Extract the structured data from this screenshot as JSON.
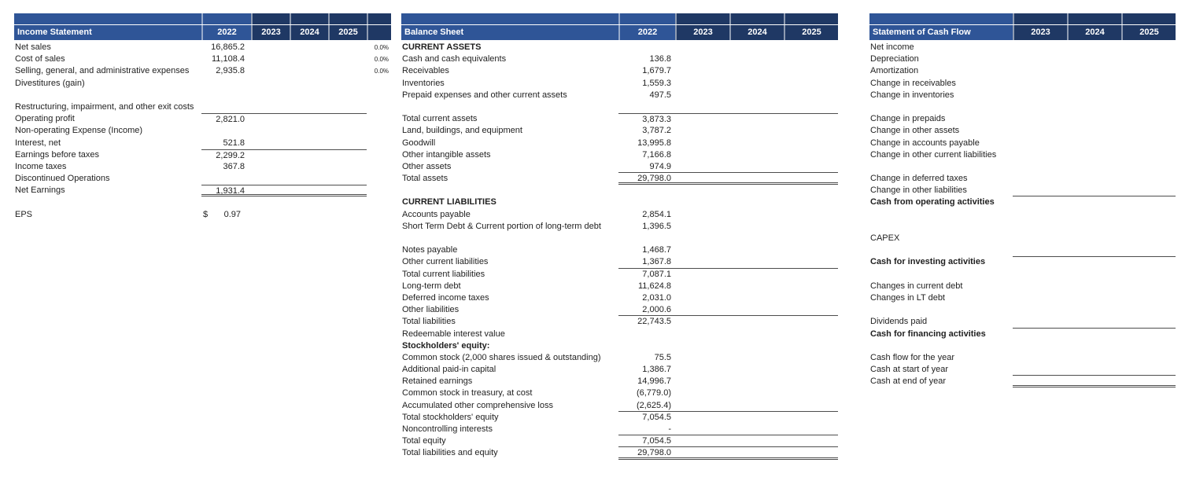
{
  "colors": {
    "header_blue": "#2F5597",
    "header_navy": "#1F3864",
    "border_gray": "#4d4d4d",
    "text": "#1f1f1f"
  },
  "statements": [
    {
      "id": "income-statement",
      "title": "Income Statement",
      "years": [
        "2022",
        "2023",
        "2024",
        "2025"
      ],
      "first_year_highlighted": true,
      "has_pct_column": true,
      "rows": [
        {
          "label": "Net sales",
          "values": [
            "16,865.2",
            "",
            "",
            ""
          ],
          "pct": "0.0%"
        },
        {
          "label": "Cost of sales",
          "values": [
            "11,108.4",
            "",
            "",
            ""
          ],
          "pct": "0.0%"
        },
        {
          "label": "Selling, general, and administrative expenses",
          "values": [
            "2,935.8",
            "",
            "",
            ""
          ],
          "pct": "0.0%"
        },
        {
          "label": "Divestitures (gain)",
          "values": [
            "",
            "",
            "",
            ""
          ]
        },
        {
          "label": "",
          "values": [
            "",
            "",
            "",
            ""
          ]
        },
        {
          "label": "Restructuring, impairment, and other exit costs",
          "values": [
            "",
            "",
            "",
            ""
          ]
        },
        {
          "label": "Operating profit",
          "values": [
            "2,821.0",
            "",
            "",
            ""
          ],
          "border_top": true
        },
        {
          "label": "Non-operating Expense (Income)",
          "values": [
            "",
            "",
            "",
            ""
          ]
        },
        {
          "label": "Interest, net",
          "values": [
            "521.8",
            "",
            "",
            ""
          ]
        },
        {
          "label": "Earnings before taxes",
          "values": [
            "2,299.2",
            "",
            "",
            ""
          ],
          "border_top": true
        },
        {
          "label": "Income taxes",
          "values": [
            "367.8",
            "",
            "",
            ""
          ]
        },
        {
          "label": "Discontinued Operations",
          "values": [
            "",
            "",
            "",
            ""
          ]
        },
        {
          "label": "Net Earnings",
          "values": [
            "1,931.4",
            "",
            "",
            ""
          ],
          "border_top": true,
          "border_bottom": "double"
        },
        {
          "label": "",
          "values": [
            "",
            "",
            "",
            ""
          ]
        },
        {
          "label": "EPS",
          "values": [
            "0.97",
            "",
            "",
            ""
          ],
          "currency": "$"
        }
      ]
    },
    {
      "id": "balance-sheet",
      "title": "Balance Sheet",
      "years": [
        "2022",
        "2023",
        "2024",
        "2025"
      ],
      "first_year_highlighted": true,
      "has_pct_column": false,
      "rows": [
        {
          "label": "CURRENT ASSETS",
          "values": [
            "",
            "",
            "",
            ""
          ],
          "bold": true
        },
        {
          "label": "Cash and cash equivalents",
          "values": [
            "136.8",
            "",
            "",
            ""
          ]
        },
        {
          "label": "Receivables",
          "values": [
            "1,679.7",
            "",
            "",
            ""
          ]
        },
        {
          "label": "Inventories",
          "values": [
            "1,559.3",
            "",
            "",
            ""
          ]
        },
        {
          "label": "Prepaid expenses and other current assets",
          "values": [
            "497.5",
            "",
            "",
            ""
          ]
        },
        {
          "label": "",
          "values": [
            "",
            "",
            "",
            ""
          ]
        },
        {
          "label": "Total current assets",
          "values": [
            "3,873.3",
            "",
            "",
            ""
          ],
          "border_top": true
        },
        {
          "label": "Land, buildings, and equipment",
          "values": [
            "3,787.2",
            "",
            "",
            ""
          ]
        },
        {
          "label": "Goodwill",
          "values": [
            "13,995.8",
            "",
            "",
            ""
          ]
        },
        {
          "label": "Other intangible assets",
          "values": [
            "7,166.8",
            "",
            "",
            ""
          ]
        },
        {
          "label": "Other assets",
          "values": [
            "974.9",
            "",
            "",
            ""
          ],
          "border_bottom": "single"
        },
        {
          "label": "Total assets",
          "values": [
            "29,798.0",
            "",
            "",
            ""
          ],
          "border_bottom": "double"
        },
        {
          "label": "",
          "values": [
            "",
            "",
            "",
            ""
          ]
        },
        {
          "label": "CURRENT LIABILITIES",
          "values": [
            "",
            "",
            "",
            ""
          ],
          "bold": true
        },
        {
          "label": "Accounts payable",
          "values": [
            "2,854.1",
            "",
            "",
            ""
          ]
        },
        {
          "label": "Short Term Debt & Current portion of long-term debt",
          "values": [
            "1,396.5",
            "",
            "",
            ""
          ]
        },
        {
          "label": "",
          "values": [
            "",
            "",
            "",
            ""
          ]
        },
        {
          "label": "Notes payable",
          "values": [
            "1,468.7",
            "",
            "",
            ""
          ]
        },
        {
          "label": "Other current liabilities",
          "values": [
            "1,367.8",
            "",
            "",
            ""
          ],
          "border_bottom": "single"
        },
        {
          "label": "Total current liabilities",
          "values": [
            "7,087.1",
            "",
            "",
            ""
          ]
        },
        {
          "label": "Long-term debt",
          "values": [
            "11,624.8",
            "",
            "",
            ""
          ]
        },
        {
          "label": "Deferred income taxes",
          "values": [
            "2,031.0",
            "",
            "",
            ""
          ]
        },
        {
          "label": "Other liabilities",
          "values": [
            "2,000.6",
            "",
            "",
            ""
          ],
          "border_bottom": "single"
        },
        {
          "label": "Total liabilities",
          "values": [
            "22,743.5",
            "",
            "",
            ""
          ]
        },
        {
          "label": "Redeemable interest value",
          "values": [
            "",
            "",
            "",
            ""
          ]
        },
        {
          "label": "Stockholders' equity:",
          "values": [
            "",
            "",
            "",
            ""
          ],
          "bold": true
        },
        {
          "label": "Common stock (2,000 shares issued & outstanding)",
          "values": [
            "75.5",
            "",
            "",
            ""
          ]
        },
        {
          "label": "Additional paid-in capital",
          "values": [
            "1,386.7",
            "",
            "",
            ""
          ]
        },
        {
          "label": "Retained earnings",
          "values": [
            "14,996.7",
            "",
            "",
            ""
          ]
        },
        {
          "label": "Common stock in treasury, at cost",
          "values": [
            "(6,779.0)",
            "",
            "",
            ""
          ]
        },
        {
          "label": "Accumulated other comprehensive loss",
          "values": [
            "(2,625.4)",
            "",
            "",
            ""
          ],
          "border_bottom": "single"
        },
        {
          "label": "Total stockholders' equity",
          "values": [
            "7,054.5",
            "",
            "",
            ""
          ]
        },
        {
          "label": "Noncontrolling interests",
          "values": [
            "-",
            "",
            "",
            ""
          ],
          "border_bottom": "single"
        },
        {
          "label": "Total equity",
          "values": [
            "7,054.5",
            "",
            "",
            ""
          ],
          "border_bottom": "single"
        },
        {
          "label": "Total liabilities and equity",
          "values": [
            "29,798.0",
            "",
            "",
            ""
          ],
          "border_bottom": "double"
        }
      ]
    },
    {
      "id": "cash-flow",
      "title": "Statement of Cash Flow",
      "years": [
        "2023",
        "2024",
        "2025"
      ],
      "first_year_highlighted": false,
      "has_pct_column": false,
      "rows": [
        {
          "label": "Net income",
          "values": [
            "",
            "",
            ""
          ]
        },
        {
          "label": "Depreciation",
          "values": [
            "",
            "",
            ""
          ]
        },
        {
          "label": "Amortization",
          "values": [
            "",
            "",
            ""
          ]
        },
        {
          "label": "Change in receivables",
          "values": [
            "",
            "",
            ""
          ]
        },
        {
          "label": "Change in inventories",
          "values": [
            "",
            "",
            ""
          ]
        },
        {
          "label": "",
          "values": [
            "",
            "",
            ""
          ]
        },
        {
          "label": "Change in prepaids",
          "values": [
            "",
            "",
            ""
          ]
        },
        {
          "label": "Change in other assets",
          "values": [
            "",
            "",
            ""
          ]
        },
        {
          "label": "Change in accounts payable",
          "values": [
            "",
            "",
            ""
          ]
        },
        {
          "label": "Change in other current liabilities",
          "values": [
            "",
            "",
            ""
          ]
        },
        {
          "label": "",
          "values": [
            "",
            "",
            ""
          ]
        },
        {
          "label": "Change in deferred taxes",
          "values": [
            "",
            "",
            ""
          ]
        },
        {
          "label": "Change in other liabilities",
          "values": [
            "",
            "",
            ""
          ],
          "border_bottom": "single"
        },
        {
          "label": "Cash from operating activities",
          "values": [
            "",
            "",
            ""
          ],
          "bold": true
        },
        {
          "label": "",
          "values": [
            "",
            "",
            ""
          ]
        },
        {
          "label": "",
          "values": [
            "",
            "",
            ""
          ]
        },
        {
          "label": "CAPEX",
          "values": [
            "",
            "",
            ""
          ]
        },
        {
          "label": "",
          "values": [
            "",
            "",
            ""
          ]
        },
        {
          "label": "Cash for investing activities",
          "values": [
            "",
            "",
            ""
          ],
          "bold": true,
          "border_top": true
        },
        {
          "label": "",
          "values": [
            "",
            "",
            ""
          ]
        },
        {
          "label": "Changes in current debt",
          "values": [
            "",
            "",
            ""
          ]
        },
        {
          "label": "Changes in LT debt",
          "values": [
            "",
            "",
            ""
          ]
        },
        {
          "label": "",
          "values": [
            "",
            "",
            ""
          ]
        },
        {
          "label": "Dividends paid",
          "values": [
            "",
            "",
            ""
          ],
          "border_bottom": "single"
        },
        {
          "label": "Cash for financing activities",
          "values": [
            "",
            "",
            ""
          ],
          "bold": true
        },
        {
          "label": "",
          "values": [
            "",
            "",
            ""
          ]
        },
        {
          "label": "Cash flow for the year",
          "values": [
            "",
            "",
            ""
          ]
        },
        {
          "label": "Cash at start of year",
          "values": [
            "",
            "",
            ""
          ],
          "border_bottom": "single"
        },
        {
          "label": "Cash at end of year",
          "values": [
            "",
            "",
            ""
          ],
          "border_bottom": "double"
        }
      ]
    }
  ]
}
